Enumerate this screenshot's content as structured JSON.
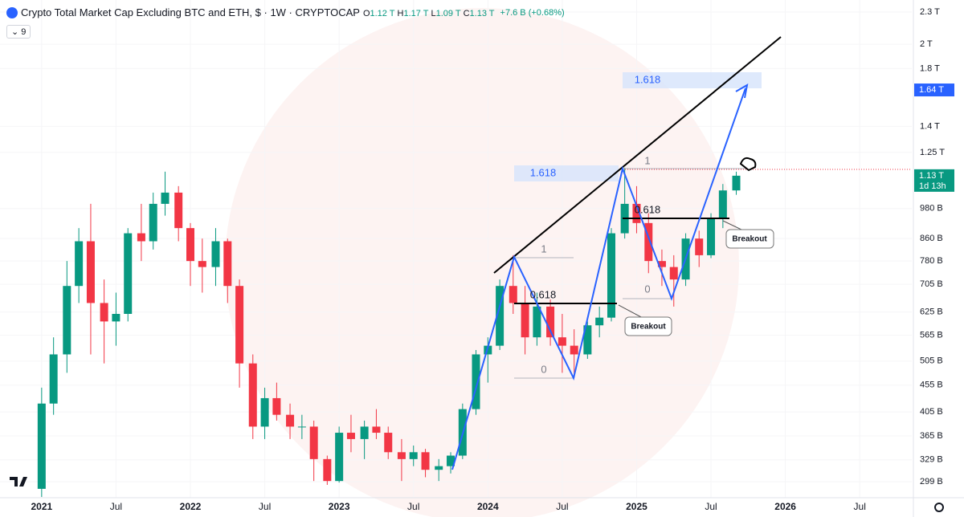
{
  "header": {
    "title": "Crypto Total Market Cap Excluding BTC and ETH, $ · 1W · CRYPTOCAP",
    "ohlc": [
      {
        "key": "O",
        "value": "1.12 T"
      },
      {
        "key": "H",
        "value": "1.17 T"
      },
      {
        "key": "L",
        "value": "1.09 T"
      },
      {
        "key": "C",
        "value": "1.13 T"
      }
    ],
    "change": "+7.6 B (+0.68%)",
    "indicator_count": "9"
  },
  "chart_data": {
    "type": "candlestick",
    "log_scale": true,
    "up_color": "#089981",
    "down_color": "#f23645",
    "xlim": [
      2020.72,
      2026.85
    ],
    "ylim": [
      279,
      2424
    ],
    "xticks": [
      {
        "value": 2021,
        "label": "2021"
      },
      {
        "value": 2021.5,
        "label": "Jul"
      },
      {
        "value": 2022,
        "label": "2022"
      },
      {
        "value": 2022.5,
        "label": "Jul"
      },
      {
        "value": 2023,
        "label": "2023"
      },
      {
        "value": 2023.5,
        "label": "Jul"
      },
      {
        "value": 2024,
        "label": "2024"
      },
      {
        "value": 2024.5,
        "label": "Jul"
      },
      {
        "value": 2025,
        "label": "2025"
      },
      {
        "value": 2025.5,
        "label": "Jul"
      },
      {
        "value": 2026,
        "label": "2026"
      },
      {
        "value": 2026.5,
        "label": "Jul"
      }
    ],
    "yticks": [
      {
        "value": 2300,
        "label": "2.3 T"
      },
      {
        "value": 2000,
        "label": "2 T"
      },
      {
        "value": 1800,
        "label": "1.8 T"
      },
      {
        "value": 1400,
        "label": "1.4 T"
      },
      {
        "value": 1250,
        "label": "1.25 T"
      },
      {
        "value": 980,
        "label": "980 B"
      },
      {
        "value": 860,
        "label": "860 B"
      },
      {
        "value": 780,
        "label": "780 B"
      },
      {
        "value": 705,
        "label": "705 B"
      },
      {
        "value": 625,
        "label": "625 B"
      },
      {
        "value": 565,
        "label": "565 B"
      },
      {
        "value": 505,
        "label": "505 B"
      },
      {
        "value": 455,
        "label": "455 B"
      },
      {
        "value": 405,
        "label": "405 B"
      },
      {
        "value": 365,
        "label": "365 B"
      },
      {
        "value": 329,
        "label": "329 B"
      },
      {
        "value": 299,
        "label": "299 B"
      }
    ],
    "price_badges": [
      {
        "value": 1640,
        "label": "1.64 T",
        "color": "#2962ff"
      },
      {
        "value": 1130,
        "label": "1.13 T",
        "sub": "1d 13h",
        "color": "#089981"
      }
    ],
    "x": [
      2021.0,
      2021.08,
      2021.17,
      2021.25,
      2021.33,
      2021.42,
      2021.5,
      2021.58,
      2021.67,
      2021.75,
      2021.83,
      2021.92,
      2022.0,
      2022.08,
      2022.17,
      2022.25,
      2022.33,
      2022.42,
      2022.5,
      2022.58,
      2022.67,
      2022.75,
      2022.83,
      2022.92,
      2023.0,
      2023.08,
      2023.17,
      2023.25,
      2023.33,
      2023.42,
      2023.5,
      2023.58,
      2023.67,
      2023.75,
      2023.83,
      2023.92,
      2024.0,
      2024.08,
      2024.17,
      2024.25,
      2024.33,
      2024.42,
      2024.5,
      2024.58,
      2024.67,
      2024.75,
      2024.83,
      2024.92,
      2025.0,
      2025.08,
      2025.17,
      2025.25,
      2025.33,
      2025.42,
      2025.5,
      2025.58,
      2025.67
    ],
    "open": [
      290,
      420,
      520,
      700,
      850,
      650,
      600,
      620,
      880,
      850,
      1000,
      1050,
      900,
      780,
      760,
      850,
      700,
      500,
      380,
      430,
      400,
      380,
      380,
      330,
      300,
      370,
      360,
      380,
      370,
      340,
      330,
      340,
      315,
      320,
      335,
      410,
      520,
      540,
      700,
      650,
      560,
      640,
      560,
      540,
      520,
      590,
      610,
      880,
      1000,
      920,
      780,
      760,
      720,
      860,
      800,
      940,
      1060
    ],
    "high": [
      450,
      560,
      780,
      900,
      1000,
      720,
      680,
      900,
      1000,
      1050,
      1150,
      1080,
      920,
      860,
      900,
      860,
      720,
      520,
      450,
      460,
      420,
      400,
      390,
      335,
      380,
      400,
      390,
      410,
      380,
      360,
      350,
      345,
      330,
      340,
      420,
      530,
      560,
      720,
      800,
      700,
      680,
      660,
      620,
      580,
      600,
      640,
      900,
      1170,
      1080,
      960,
      820,
      800,
      880,
      890,
      960,
      1090,
      1150
    ],
    "low": [
      280,
      400,
      480,
      650,
      520,
      500,
      540,
      600,
      780,
      820,
      950,
      850,
      700,
      680,
      700,
      650,
      450,
      360,
      360,
      390,
      360,
      360,
      300,
      295,
      298,
      340,
      330,
      360,
      330,
      300,
      320,
      305,
      300,
      310,
      330,
      400,
      460,
      530,
      620,
      520,
      540,
      540,
      480,
      470,
      510,
      560,
      600,
      860,
      880,
      740,
      700,
      640,
      700,
      760,
      790,
      900,
      1040
    ],
    "close": [
      420,
      520,
      700,
      850,
      650,
      600,
      620,
      880,
      850,
      1000,
      1050,
      900,
      780,
      760,
      850,
      700,
      500,
      380,
      430,
      400,
      380,
      380,
      330,
      300,
      370,
      360,
      380,
      370,
      340,
      330,
      340,
      315,
      320,
      335,
      410,
      520,
      540,
      700,
      650,
      560,
      640,
      560,
      540,
      520,
      590,
      610,
      880,
      1000,
      920,
      780,
      760,
      720,
      860,
      800,
      940,
      1060,
      1130
    ],
    "annotations": {
      "fib1": {
        "ext": "1.618",
        "one": "1",
        "mid": "0.618",
        "zero": "0"
      },
      "fib2": {
        "ext": "1.618",
        "one": "1",
        "mid": "0.618",
        "zero": "0"
      },
      "breakout1": "Breakout",
      "breakout2": "Breakout"
    }
  }
}
